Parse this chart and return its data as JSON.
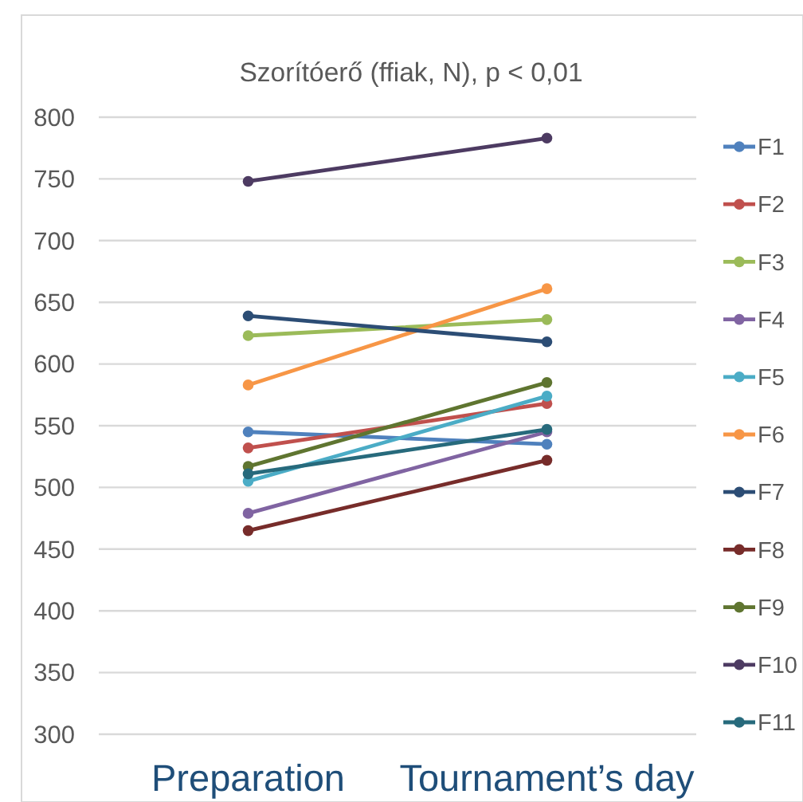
{
  "chart_data": {
    "type": "line",
    "title": "Szorítóerő (ffiak, N), p < 0,01",
    "categories": [
      "Preparation",
      "Tournament’s day"
    ],
    "series": [
      {
        "name": "F1",
        "color": "#4f81bd",
        "values": [
          545,
          535
        ]
      },
      {
        "name": "F2",
        "color": "#c0504d",
        "values": [
          532,
          568
        ]
      },
      {
        "name": "F3",
        "color": "#9bbb59",
        "values": [
          623,
          636
        ]
      },
      {
        "name": "F4",
        "color": "#8064a2",
        "values": [
          479,
          545
        ]
      },
      {
        "name": "F5",
        "color": "#4bacc6",
        "values": [
          505,
          574
        ]
      },
      {
        "name": "F6",
        "color": "#f79646",
        "values": [
          583,
          661
        ]
      },
      {
        "name": "F7",
        "color": "#2c4d75",
        "values": [
          639,
          618
        ]
      },
      {
        "name": "F8",
        "color": "#772c2a",
        "values": [
          465,
          522
        ]
      },
      {
        "name": "F9",
        "color": "#5f7530",
        "values": [
          517,
          585
        ]
      },
      {
        "name": "F10",
        "color": "#4d3b62",
        "values": [
          748,
          783
        ]
      },
      {
        "name": "F11",
        "color": "#276a7c",
        "values": [
          511,
          547
        ]
      }
    ],
    "ylim": [
      300,
      800
    ],
    "yticks": [
      300,
      350,
      400,
      450,
      500,
      550,
      600,
      650,
      700,
      750,
      800
    ],
    "grid": "y",
    "legend": "right",
    "marker": "circle",
    "line_style": "solid"
  }
}
